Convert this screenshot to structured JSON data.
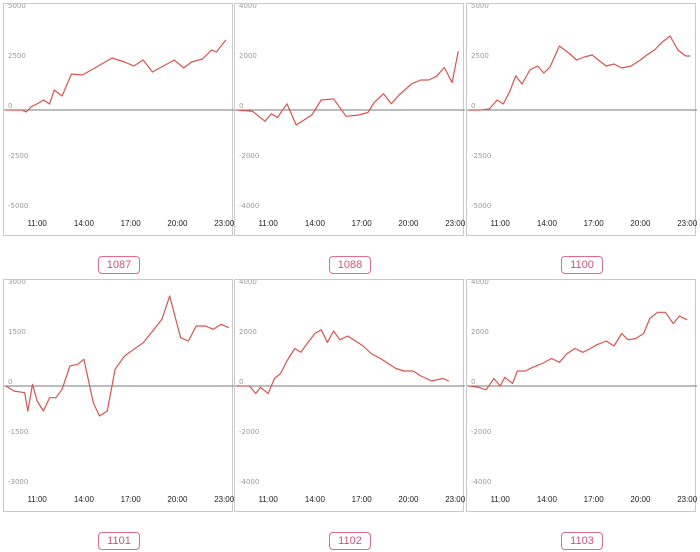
{
  "style": {
    "line_color": "#d9534f",
    "zero_line_color": "#7a7a7a",
    "border_color": "#c9c9c9",
    "badge_color": "#d0517d"
  },
  "chart_data": [
    {
      "type": "line",
      "label": "1087",
      "ylim": [
        -5000,
        5000
      ],
      "yticks": [
        "5000",
        "2500",
        "0",
        "-2500",
        "-5000"
      ],
      "ytick_values": [
        5000,
        2500,
        0,
        -2500,
        -5000
      ],
      "xticks": [
        "11:00",
        "14:00",
        "17:00",
        "20:00",
        "23:00"
      ],
      "xtick_values": [
        11,
        14,
        17,
        20,
        23
      ],
      "xlim": [
        9,
        23.5
      ],
      "x": [
        9.0,
        10.0,
        10.3,
        10.6,
        11.1,
        11.4,
        11.8,
        12.1,
        12.6,
        13.2,
        13.9,
        14.7,
        15.8,
        16.6,
        17.2,
        17.8,
        18.4,
        19.1,
        19.8,
        20.4,
        20.9,
        21.6,
        22.2,
        22.5,
        23.1
      ],
      "y": [
        0,
        0,
        -100,
        150,
        350,
        500,
        300,
        1000,
        700,
        1800,
        1750,
        2100,
        2600,
        2400,
        2200,
        2500,
        1900,
        2200,
        2500,
        2100,
        2400,
        2550,
        3000,
        2900,
        3500
      ]
    },
    {
      "type": "line",
      "label": "1088",
      "ylim": [
        -4000,
        4000
      ],
      "yticks": [
        "4000",
        "2000",
        "0",
        "-2000",
        "-4000"
      ],
      "ytick_values": [
        4000,
        2000,
        0,
        -2000,
        -4000
      ],
      "xticks": [
        "11:00",
        "14:00",
        "17:00",
        "20:00",
        "23:00"
      ],
      "xtick_values": [
        11,
        14,
        17,
        20,
        23
      ],
      "xlim": [
        9,
        23.5
      ],
      "x": [
        9.0,
        10.0,
        10.4,
        10.8,
        11.2,
        11.6,
        12.2,
        12.8,
        13.3,
        13.8,
        14.4,
        15.2,
        16.0,
        16.8,
        17.4,
        17.8,
        18.4,
        18.9,
        19.4,
        20.2,
        20.8,
        21.3,
        21.8,
        22.3,
        22.8,
        23.2
      ],
      "y": [
        0,
        -50,
        -250,
        -450,
        -150,
        -300,
        250,
        -600,
        -400,
        -200,
        400,
        450,
        -250,
        -200,
        -100,
        300,
        650,
        250,
        600,
        1050,
        1200,
        1200,
        1350,
        1700,
        1100,
        2350
      ]
    },
    {
      "type": "line",
      "label": "1100",
      "ylim": [
        -5000,
        5000
      ],
      "yticks": [
        "5000",
        "2500",
        "0",
        "-2500",
        "-5000"
      ],
      "ytick_values": [
        5000,
        2500,
        0,
        -2500,
        -5000
      ],
      "xticks": [
        "11:00",
        "14:00",
        "17:00",
        "20:00",
        "23:00"
      ],
      "xtick_values": [
        11,
        14,
        17,
        20,
        23
      ],
      "xlim": [
        9,
        23.5
      ],
      "x": [
        9.0,
        9.8,
        10.3,
        10.8,
        11.2,
        11.6,
        12.0,
        12.4,
        12.9,
        13.4,
        13.8,
        14.2,
        14.8,
        15.4,
        15.9,
        16.4,
        16.9,
        17.3,
        17.8,
        18.3,
        18.8,
        19.4,
        20.0,
        20.4,
        20.9,
        21.4,
        21.9,
        22.4,
        22.9,
        23.2
      ],
      "y": [
        0,
        0,
        50,
        500,
        300,
        900,
        1700,
        1300,
        2000,
        2200,
        1850,
        2150,
        3200,
        2850,
        2500,
        2650,
        2750,
        2500,
        2200,
        2300,
        2100,
        2200,
        2500,
        2750,
        3000,
        3400,
        3700,
        3000,
        2700,
        2700
      ]
    },
    {
      "type": "line",
      "label": "1101",
      "ylim": [
        -3000,
        3000
      ],
      "yticks": [
        "3000",
        "1500",
        "0",
        "-1500",
        "-3000"
      ],
      "ytick_values": [
        3000,
        1500,
        0,
        -1500,
        -3000
      ],
      "xticks": [
        "11:00",
        "14:00",
        "17:00",
        "20:00",
        "23:00"
      ],
      "xtick_values": [
        11,
        14,
        17,
        20,
        23
      ],
      "xlim": [
        9,
        23.5
      ],
      "x": [
        9.0,
        9.5,
        10.2,
        10.4,
        10.7,
        11.0,
        11.4,
        11.8,
        12.2,
        12.6,
        13.1,
        13.6,
        14.0,
        14.6,
        15.0,
        15.5,
        16.0,
        16.6,
        17.2,
        17.8,
        18.5,
        19.0,
        19.5,
        20.2,
        20.7,
        21.2,
        21.8,
        22.3,
        22.8,
        23.3
      ],
      "y": [
        0,
        -150,
        -200,
        -750,
        50,
        -450,
        -750,
        -350,
        -350,
        -100,
        600,
        650,
        800,
        -500,
        -900,
        -750,
        500,
        900,
        1100,
        1300,
        1700,
        2000,
        2700,
        1450,
        1350,
        1800,
        1800,
        1700,
        1850,
        1750
      ]
    },
    {
      "type": "line",
      "label": "1102",
      "ylim": [
        -4000,
        4000
      ],
      "yticks": [
        "4000",
        "2000",
        "0",
        "-2000",
        "-4000"
      ],
      "ytick_values": [
        4000,
        2000,
        0,
        -2000,
        -4000
      ],
      "xticks": [
        "11:00",
        "14:00",
        "17:00",
        "20:00",
        "23:00"
      ],
      "xtick_values": [
        11,
        14,
        17,
        20,
        23
      ],
      "xlim": [
        9,
        23.5
      ],
      "x": [
        9.0,
        9.8,
        10.2,
        10.5,
        11.0,
        11.4,
        11.8,
        12.2,
        12.7,
        13.1,
        13.5,
        14.0,
        14.4,
        14.8,
        15.2,
        15.6,
        16.1,
        16.6,
        17.1,
        17.6,
        18.2,
        18.7,
        19.2,
        19.7,
        20.3,
        20.8,
        21.5,
        22.2,
        22.6
      ],
      "y": [
        0,
        0,
        -300,
        -50,
        -300,
        300,
        500,
        1000,
        1500,
        1350,
        1700,
        2100,
        2250,
        1750,
        2200,
        1850,
        2000,
        1800,
        1600,
        1300,
        1100,
        900,
        700,
        600,
        600,
        400,
        200,
        300,
        200
      ]
    },
    {
      "type": "line",
      "label": "1103",
      "ylim": [
        -4000,
        4000
      ],
      "yticks": [
        "4000",
        "2000",
        "0",
        "-2000",
        "-4000"
      ],
      "ytick_values": [
        4000,
        2000,
        0,
        -2000,
        -4000
      ],
      "xticks": [
        "11:00",
        "14:00",
        "17:00",
        "20:00",
        "23:00"
      ],
      "xtick_values": [
        11,
        14,
        17,
        20,
        23
      ],
      "xlim": [
        9,
        23.5
      ],
      "x": [
        9.0,
        9.6,
        10.1,
        10.6,
        11.0,
        11.3,
        11.8,
        12.1,
        12.6,
        13.1,
        13.7,
        14.3,
        14.8,
        15.3,
        15.8,
        16.3,
        16.8,
        17.2,
        17.8,
        18.3,
        18.8,
        19.2,
        19.7,
        20.2,
        20.6,
        21.1,
        21.6,
        22.1,
        22.5,
        23.0
      ],
      "y": [
        0,
        -50,
        -150,
        300,
        0,
        350,
        100,
        600,
        600,
        750,
        900,
        1100,
        950,
        1300,
        1500,
        1350,
        1500,
        1650,
        1800,
        1600,
        2100,
        1850,
        1900,
        2100,
        2700,
        2950,
        2950,
        2500,
        2800,
        2650
      ]
    }
  ]
}
